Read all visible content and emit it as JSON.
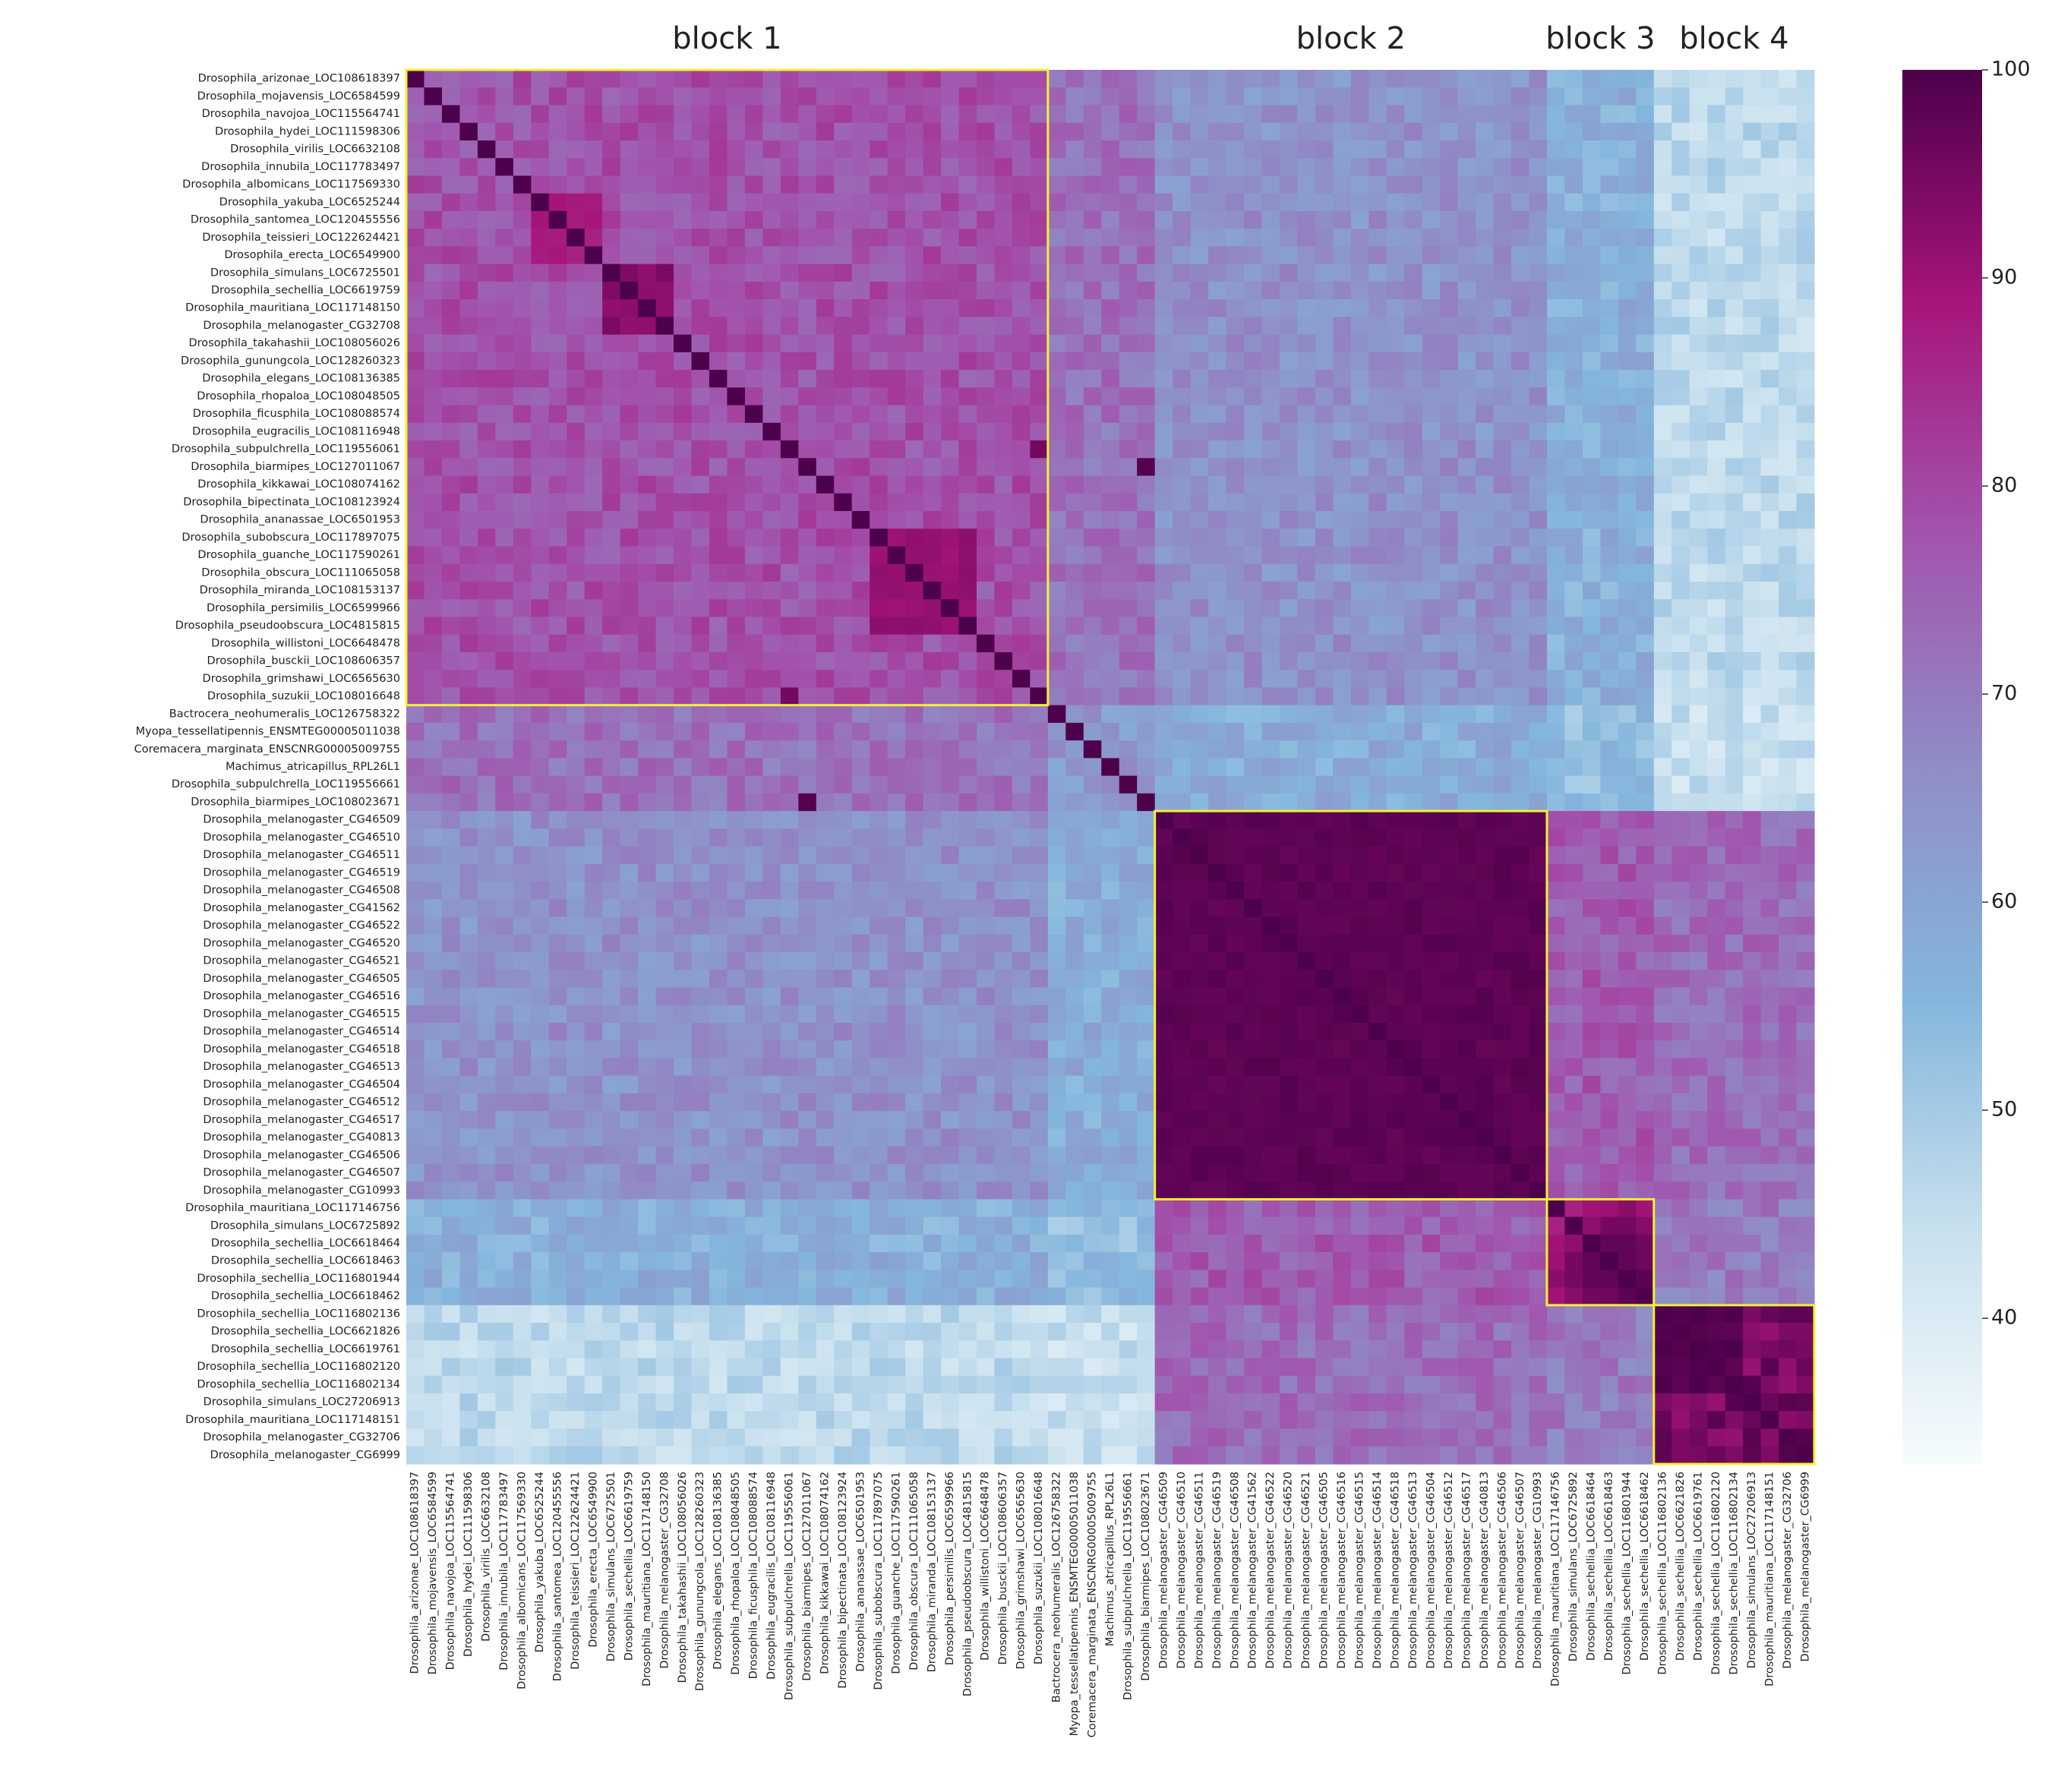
{
  "chart_data": {
    "type": "heatmap",
    "title": "",
    "xlabel": "",
    "ylabel": "",
    "colormap": [
      "#f7fcfd",
      "#c8e0ee",
      "#84b6dc",
      "#8f8dc6",
      "#a254ad",
      "#a6157a",
      "#4d004b"
    ],
    "colorbar": {
      "min": 33,
      "max": 100,
      "ticks": [
        "100",
        "90",
        "80",
        "70",
        "60",
        "50",
        "40"
      ]
    },
    "block_outline_color": "#f1f232",
    "blocks": [
      {
        "label": "block 1",
        "start": 0,
        "end": 35
      },
      {
        "label": "block 2",
        "start": 42,
        "end": 63
      },
      {
        "label": "block 3",
        "start": 64,
        "end": 69
      },
      {
        "label": "block 4",
        "start": 70,
        "end": 78
      }
    ],
    "labels": [
      "Drosophila_arizonae_LOC108618397",
      "Drosophila_mojavensis_LOC6584599",
      "Drosophila_navojoa_LOC115564741",
      "Drosophila_hydei_LOC111598306",
      "Drosophila_virilis_LOC6632108",
      "Drosophila_innubila_LOC117783497",
      "Drosophila_albomicans_LOC117569330",
      "Drosophila_yakuba_LOC6525244",
      "Drosophila_santomea_LOC120455556",
      "Drosophila_teissieri_LOC122624421",
      "Drosophila_erecta_LOC6549900",
      "Drosophila_simulans_LOC6725501",
      "Drosophila_sechellia_LOC6619759",
      "Drosophila_mauritiana_LOC117148150",
      "Drosophila_melanogaster_CG32708",
      "Drosophila_takahashii_LOC108056026",
      "Drosophila_gunungcola_LOC128260323",
      "Drosophila_elegans_LOC108136385",
      "Drosophila_rhopaloa_LOC108048505",
      "Drosophila_ficusphila_LOC108088574",
      "Drosophila_eugracilis_LOC108116948",
      "Drosophila_subpulchrella_LOC119556061",
      "Drosophila_biarmipes_LOC127011067",
      "Drosophila_kikkawai_LOC108074162",
      "Drosophila_bipectinata_LOC108123924",
      "Drosophila_ananassae_LOC6501953",
      "Drosophila_subobscura_LOC117897075",
      "Drosophila_guanche_LOC117590261",
      "Drosophila_obscura_LOC111065058",
      "Drosophila_miranda_LOC108153137",
      "Drosophila_persimilis_LOC6599966",
      "Drosophila_pseudoobscura_LOC4815815",
      "Drosophila_willistoni_LOC6648478",
      "Drosophila_busckii_LOC108606357",
      "Drosophila_grimshawi_LOC6565630",
      "Drosophila_suzukii_LOC108016648",
      "Bactrocera_neohumeralis_LOC126758322",
      "Myopa_tessellatipennis_ENSMTEG00005011038",
      "Coremacera_marginata_ENSCNRG00005009755",
      "Machimus_atricapillus_RPL26L1",
      "Drosophila_subpulchrella_LOC119556661",
      "Drosophila_biarmipes_LOC108023671",
      "Drosophila_melanogaster_CG46509",
      "Drosophila_melanogaster_CG46510",
      "Drosophila_melanogaster_CG46511",
      "Drosophila_melanogaster_CG46519",
      "Drosophila_melanogaster_CG46508",
      "Drosophila_melanogaster_CG41562",
      "Drosophila_melanogaster_CG46522",
      "Drosophila_melanogaster_CG46520",
      "Drosophila_melanogaster_CG46521",
      "Drosophila_melanogaster_CG46505",
      "Drosophila_melanogaster_CG46516",
      "Drosophila_melanogaster_CG46515",
      "Drosophila_melanogaster_CG46514",
      "Drosophila_melanogaster_CG46518",
      "Drosophila_melanogaster_CG46513",
      "Drosophila_melanogaster_CG46504",
      "Drosophila_melanogaster_CG46512",
      "Drosophila_melanogaster_CG46517",
      "Drosophila_melanogaster_CG40813",
      "Drosophila_melanogaster_CG46506",
      "Drosophila_melanogaster_CG46507",
      "Drosophila_melanogaster_CG10993",
      "Drosophila_mauritiana_LOC117146756",
      "Drosophila_simulans_LOC6725892",
      "Drosophila_sechellia_LOC6618464",
      "Drosophila_sechellia_LOC6618463",
      "Drosophila_sechellia_LOC116801944",
      "Drosophila_sechellia_LOC6618462",
      "Drosophila_sechellia_LOC116802136",
      "Drosophila_sechellia_LOC6621826",
      "Drosophila_sechellia_LOC6619761",
      "Drosophila_sechellia_LOC116802120",
      "Drosophila_sechellia_LOC116802134",
      "Drosophila_simulans_LOC27206913",
      "Drosophila_mauritiana_LOC117148151",
      "Drosophila_melanogaster_CG32706",
      "Drosophila_melanogaster_CG6999"
    ],
    "groups": [
      0,
      0,
      0,
      0,
      0,
      0,
      0,
      0,
      0,
      0,
      0,
      0,
      0,
      0,
      0,
      0,
      0,
      0,
      0,
      0,
      0,
      0,
      0,
      0,
      0,
      0,
      0,
      0,
      0,
      0,
      0,
      0,
      0,
      0,
      0,
      0,
      1,
      1,
      1,
      1,
      1,
      1,
      2,
      2,
      2,
      2,
      2,
      2,
      2,
      2,
      2,
      2,
      2,
      2,
      2,
      2,
      2,
      2,
      2,
      2,
      2,
      2,
      2,
      2,
      3,
      3,
      3,
      3,
      3,
      3,
      4,
      4,
      4,
      4,
      4,
      4,
      4,
      4,
      4
    ],
    "group_similarity": [
      [
        78,
        72,
        65,
        57,
        46
      ],
      [
        72,
        63,
        58,
        53,
        44
      ],
      [
        65,
        58,
        98,
        76,
        73
      ],
      [
        57,
        53,
        76,
        91,
        70
      ],
      [
        46,
        44,
        73,
        70,
        95
      ]
    ],
    "subclusters": [
      {
        "start": 7,
        "end": 10,
        "value": 88
      },
      {
        "start": 11,
        "end": 14,
        "value": 93
      },
      {
        "start": 26,
        "end": 31,
        "value": 91
      },
      {
        "start": 66,
        "end": 69,
        "value": 97
      },
      {
        "start": 70,
        "end": 74,
        "value": 99
      }
    ],
    "highlights": [
      {
        "row": 22,
        "col": 41,
        "value": 99
      },
      {
        "row": 41,
        "col": 22,
        "value": 99
      },
      {
        "row": 21,
        "col": 35,
        "value": 95
      },
      {
        "row": 35,
        "col": 21,
        "value": 95
      }
    ],
    "diagonal": 100
  }
}
